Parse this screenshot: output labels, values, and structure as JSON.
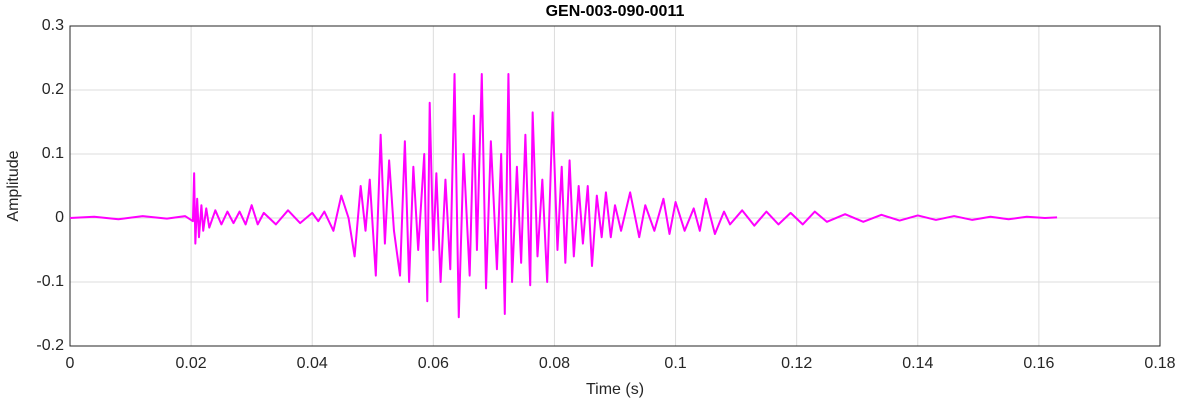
{
  "chart_data": {
    "type": "line",
    "title": "GEN-003-090-0011",
    "xlabel": "Time (s)",
    "ylabel": "Amplitude",
    "xlim": [
      0,
      0.18
    ],
    "xticks": [
      0,
      0.02,
      0.04,
      0.06,
      0.08,
      0.1,
      0.12,
      0.14,
      0.16,
      0.18
    ],
    "ylim": [
      -0.2,
      0.3
    ],
    "yticks": [
      -0.2,
      -0.1,
      0,
      0.1,
      0.2,
      0.3
    ],
    "grid": true,
    "series": [
      {
        "color": "#ff00ff",
        "x": [
          0,
          0.004,
          0.008,
          0.012,
          0.016,
          0.019,
          0.0203,
          0.0205,
          0.0207,
          0.021,
          0.0213,
          0.0217,
          0.022,
          0.0225,
          0.023,
          0.024,
          0.025,
          0.026,
          0.027,
          0.028,
          0.029,
          0.03,
          0.031,
          0.032,
          0.034,
          0.036,
          0.038,
          0.04,
          0.041,
          0.042,
          0.0435,
          0.0448,
          0.046,
          0.047,
          0.048,
          0.0488,
          0.0495,
          0.0505,
          0.0513,
          0.052,
          0.0527,
          0.0535,
          0.0545,
          0.0553,
          0.056,
          0.0567,
          0.0575,
          0.0585,
          0.059,
          0.0594,
          0.06,
          0.0605,
          0.0612,
          0.062,
          0.0628,
          0.0635,
          0.0642,
          0.065,
          0.066,
          0.0667,
          0.0672,
          0.068,
          0.0687,
          0.0695,
          0.0705,
          0.0712,
          0.0718,
          0.0724,
          0.073,
          0.0738,
          0.0745,
          0.0752,
          0.076,
          0.0764,
          0.0772,
          0.078,
          0.0788,
          0.0797,
          0.0805,
          0.0812,
          0.0818,
          0.0825,
          0.0832,
          0.084,
          0.0847,
          0.0855,
          0.0862,
          0.087,
          0.0878,
          0.0885,
          0.0893,
          0.09,
          0.091,
          0.0925,
          0.094,
          0.095,
          0.0965,
          0.098,
          0.099,
          0.1,
          0.1015,
          0.103,
          0.104,
          0.105,
          0.1065,
          0.108,
          0.109,
          0.111,
          0.113,
          0.115,
          0.117,
          0.119,
          0.121,
          0.123,
          0.125,
          0.128,
          0.131,
          0.134,
          0.137,
          0.14,
          0.143,
          0.146,
          0.149,
          0.152,
          0.155,
          0.158,
          0.161,
          0.163
        ],
        "values": [
          0,
          0.002,
          -0.002,
          0.003,
          -0.001,
          0.003,
          -0.005,
          0.07,
          -0.04,
          0.03,
          -0.03,
          0.02,
          -0.02,
          0.015,
          -0.015,
          0.012,
          -0.01,
          0.01,
          -0.008,
          0.01,
          -0.01,
          0.02,
          -0.01,
          0.008,
          -0.01,
          0.012,
          -0.008,
          0.008,
          -0.005,
          0.01,
          -0.02,
          0.035,
          0,
          -0.06,
          0.05,
          -0.02,
          0.06,
          -0.09,
          0.13,
          -0.04,
          0.09,
          -0.02,
          -0.09,
          0.12,
          -0.1,
          0.08,
          -0.05,
          0.1,
          -0.13,
          0.18,
          -0.05,
          0.07,
          -0.1,
          0.06,
          -0.08,
          0.225,
          -0.155,
          0.1,
          -0.09,
          0.16,
          -0.05,
          0.225,
          -0.11,
          0.12,
          -0.08,
          0.1,
          -0.15,
          0.225,
          -0.1,
          0.08,
          -0.07,
          0.13,
          -0.105,
          0.165,
          -0.06,
          0.06,
          -0.1,
          0.165,
          -0.05,
          0.08,
          -0.07,
          0.09,
          -0.06,
          0.05,
          -0.04,
          0.05,
          -0.075,
          0.035,
          -0.03,
          0.04,
          -0.03,
          0.02,
          -0.02,
          0.04,
          -0.03,
          0.02,
          -0.02,
          0.03,
          -0.025,
          0.025,
          -0.02,
          0.015,
          -0.02,
          0.03,
          -0.025,
          0.01,
          -0.01,
          0.012,
          -0.012,
          0.01,
          -0.01,
          0.008,
          -0.01,
          0.01,
          -0.006,
          0.006,
          -0.006,
          0.005,
          -0.004,
          0.004,
          -0.003,
          0.003,
          -0.003,
          0.002,
          -0.002,
          0.002,
          0,
          0.001
        ]
      }
    ]
  }
}
